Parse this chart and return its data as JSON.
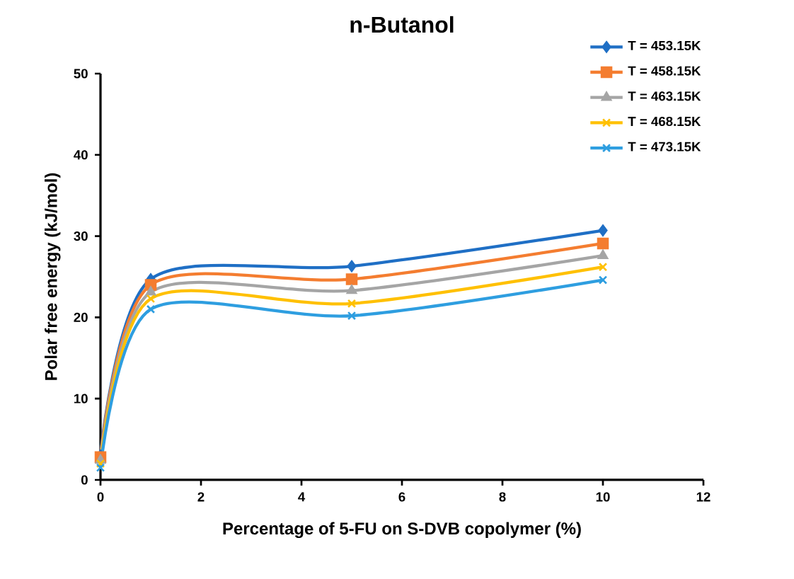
{
  "chart_data": {
    "type": "line",
    "title": "n-Butanol",
    "xlabel": "Percentage of 5-FU on S-DVB copolymer (%)",
    "ylabel": "Polar free energy (kJ/mol)",
    "x": [
      0,
      1,
      5,
      10
    ],
    "series": [
      {
        "name": "T = 453.15K",
        "color": "#1f6fc5",
        "marker": "diamond",
        "values": [
          3.0,
          24.7,
          26.3,
          30.7
        ]
      },
      {
        "name": "T = 458.15K",
        "color": "#f47d30",
        "marker": "square",
        "values": [
          2.8,
          24.0,
          24.7,
          29.1
        ]
      },
      {
        "name": "T = 463.15K",
        "color": "#a5a5a5",
        "marker": "triangle",
        "values": [
          2.4,
          23.1,
          23.3,
          27.6
        ]
      },
      {
        "name": "T = 468.15K",
        "color": "#ffc000",
        "marker": "cross",
        "values": [
          2.0,
          22.3,
          21.7,
          26.2
        ]
      },
      {
        "name": "T = 473.15K",
        "color": "#2e9ee0",
        "marker": "cross",
        "values": [
          1.5,
          21.0,
          20.2,
          24.6
        ]
      }
    ],
    "xlim": [
      0,
      12
    ],
    "xticks": [
      0,
      2,
      4,
      6,
      8,
      10,
      12
    ],
    "ylim": [
      0,
      50
    ],
    "yticks": [
      0,
      10,
      20,
      30,
      40,
      50
    ],
    "grid": false,
    "legend": "top right"
  }
}
